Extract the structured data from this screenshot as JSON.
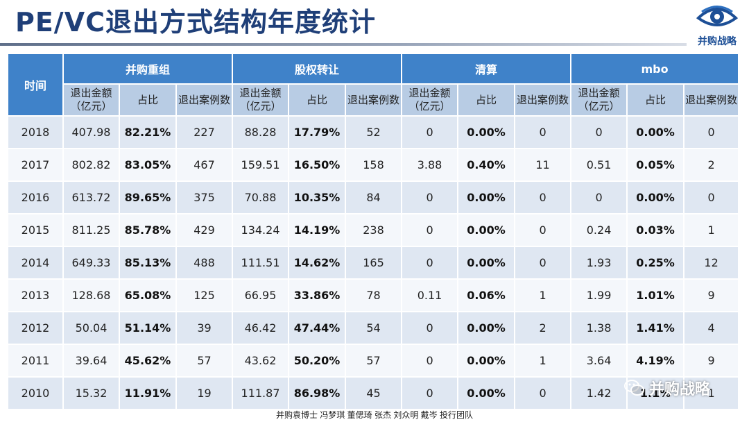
{
  "title": "PE/VC退出方式结构年度统计",
  "logo": {
    "text": "并购战略",
    "icon": "eye-icon"
  },
  "table": {
    "time_header": "时间",
    "groups": [
      "并购重组",
      "股权转让",
      "清算",
      "mbo"
    ],
    "subheaders": [
      "退出金额（亿元）",
      "占比",
      "退出案例数"
    ],
    "rows": [
      {
        "year": "2018",
        "cells": [
          "407.98",
          "82.21%",
          "227",
          "88.28",
          "17.79%",
          "52",
          "0",
          "0.00%",
          "0",
          "0",
          "0.00%",
          "0"
        ]
      },
      {
        "year": "2017",
        "cells": [
          "802.82",
          "83.05%",
          "467",
          "159.51",
          "16.50%",
          "158",
          "3.88",
          "0.40%",
          "11",
          "0.51",
          "0.05%",
          "2"
        ]
      },
      {
        "year": "2016",
        "cells": [
          "613.72",
          "89.65%",
          "375",
          "70.88",
          "10.35%",
          "84",
          "0",
          "0.00%",
          "0",
          "0",
          "0.00%",
          "0"
        ]
      },
      {
        "year": "2015",
        "cells": [
          "811.25",
          "85.78%",
          "429",
          "134.24",
          "14.19%",
          "238",
          "0",
          "0.00%",
          "0",
          "0.24",
          "0.03%",
          "1"
        ]
      },
      {
        "year": "2014",
        "cells": [
          "649.33",
          "85.13%",
          "488",
          "111.51",
          "14.62%",
          "165",
          "0",
          "0.00%",
          "0",
          "1.93",
          "0.25%",
          "12"
        ]
      },
      {
        "year": "2013",
        "cells": [
          "128.68",
          "65.08%",
          "125",
          "66.95",
          "33.86%",
          "78",
          "0.11",
          "0.06%",
          "1",
          "1.99",
          "1.01%",
          "9"
        ]
      },
      {
        "year": "2012",
        "cells": [
          "50.04",
          "51.14%",
          "39",
          "46.42",
          "47.44%",
          "54",
          "0",
          "0.00%",
          "2",
          "1.38",
          "1.41%",
          "4"
        ]
      },
      {
        "year": "2011",
        "cells": [
          "39.64",
          "45.62%",
          "57",
          "43.62",
          "50.20%",
          "57",
          "0",
          "0.00%",
          "1",
          "3.64",
          "4.19%",
          "9"
        ]
      },
      {
        "year": "2010",
        "cells": [
          "15.32",
          "11.91%",
          "19",
          "111.87",
          "86.98%",
          "45",
          "0",
          "0.00%",
          "0",
          "1.42",
          "1.1%",
          "1"
        ]
      }
    ]
  },
  "footer": "并购袁博士 冯梦琪 董偲琦 张杰 刘众明 戴岑 投行团队",
  "watermark": {
    "text": "并购战略",
    "icon": "wechat-icon"
  },
  "colors": {
    "title": "#1f3f78",
    "header_blue": "#3f82c9",
    "subheader_blue": "#b8cce4",
    "row_odd": "#dfe7f2",
    "row_even": "#f4f7fb"
  }
}
